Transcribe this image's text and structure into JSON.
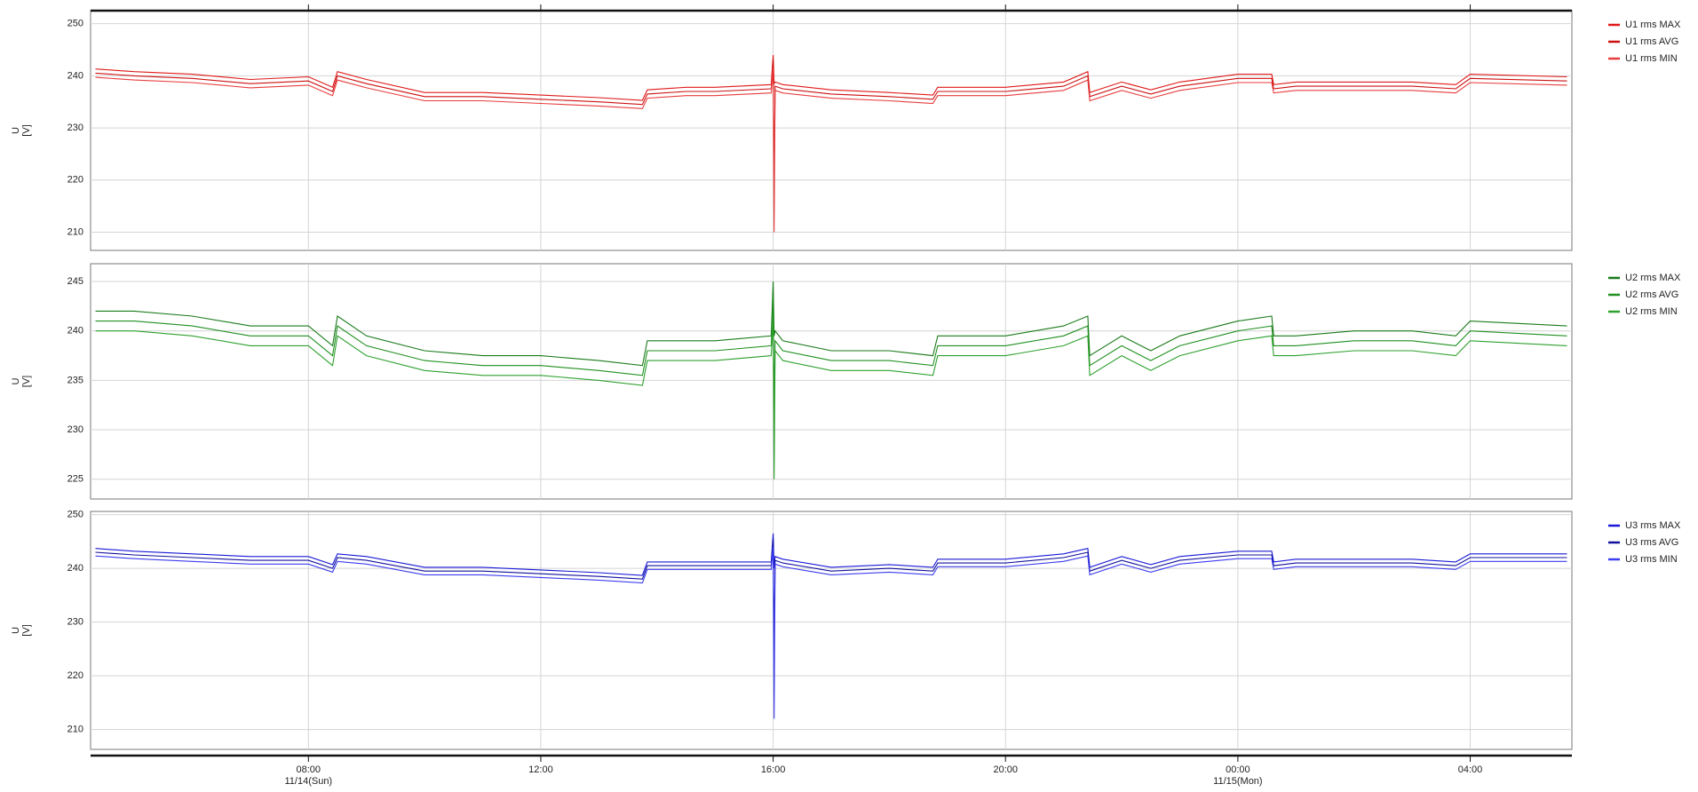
{
  "chart_data": [
    {
      "type": "line",
      "ylabel": "U",
      "yunit": "[V]",
      "ylim": [
        206.5,
        252.5
      ],
      "yticks": [
        210,
        220,
        230,
        240,
        250
      ],
      "grid": true,
      "series": [
        {
          "name": "U1 rms MAX",
          "color": "#e01818",
          "values": [
            241.3,
            240.8,
            240.3,
            239.3,
            239.8,
            237.8,
            240.8,
            239.3,
            236.8,
            236.8,
            236.3,
            235.8,
            235.3,
            237.3,
            237.8,
            237.8,
            238.3,
            244,
            238.5,
            238.8,
            238.3,
            237.3,
            236.8,
            236.3,
            237.8,
            237.8,
            238.8,
            240.8,
            236.8,
            238.8,
            237.3,
            238.8,
            240.3,
            240.3,
            238.3,
            238.8,
            238.8,
            238.8,
            238.3,
            240.3,
            239.8
          ]
        },
        {
          "name": "U1 rms AVG",
          "color": "#cc1010",
          "values": [
            240.5,
            240,
            239.5,
            238.5,
            239,
            237,
            240,
            238.5,
            236,
            236,
            235.5,
            235,
            234.5,
            236.5,
            237,
            237,
            237.5,
            243,
            220,
            238,
            237.5,
            236.5,
            236,
            235.5,
            237,
            237,
            238,
            240,
            236,
            238,
            236.5,
            238,
            239.5,
            239.5,
            237.5,
            238,
            238,
            238,
            237.5,
            239.5,
            239
          ]
        },
        {
          "name": "U1 rms MIN",
          "color": "#e83c3c",
          "values": [
            239.7,
            239.2,
            238.7,
            237.7,
            238.2,
            236.2,
            239.2,
            237.7,
            235.2,
            235.2,
            234.7,
            234.2,
            233.7,
            235.7,
            236.2,
            236.2,
            236.7,
            241.5,
            210,
            237.2,
            236.7,
            235.7,
            235.2,
            234.7,
            236.2,
            236.2,
            237.2,
            239.2,
            235.2,
            237.2,
            235.7,
            237.2,
            238.7,
            238.7,
            236.7,
            237.2,
            237.2,
            237.2,
            236.7,
            238.7,
            238.2
          ]
        }
      ]
    },
    {
      "type": "line",
      "ylabel": "U",
      "yunit": "[V]",
      "ylim": [
        223,
        246.8
      ],
      "yticks": [
        225,
        230,
        235,
        240,
        245
      ],
      "grid": true,
      "series": [
        {
          "name": "U2 rms MAX",
          "color": "#1a7a1a",
          "values": [
            242,
            242,
            241.5,
            240.5,
            240.5,
            238.5,
            241.5,
            239.5,
            238,
            237.5,
            237.5,
            237,
            236.5,
            239,
            239,
            239,
            239.5,
            245,
            239.5,
            240,
            239,
            238,
            238,
            237.5,
            239.5,
            239.5,
            240.5,
            241.5,
            237.5,
            239.5,
            238,
            239.5,
            241,
            241.5,
            239.5,
            239.5,
            240,
            240,
            239.5,
            241,
            240.5
          ]
        },
        {
          "name": "U2 rms AVG",
          "color": "#1f8f1f",
          "values": [
            241,
            241,
            240.5,
            239.5,
            239.5,
            237.5,
            240.5,
            238.5,
            237,
            236.5,
            236.5,
            236,
            235.5,
            238,
            238,
            238,
            238.5,
            243.5,
            232,
            239,
            238,
            237,
            237,
            236.5,
            238.5,
            238.5,
            239.5,
            240.5,
            236.5,
            238.5,
            237,
            238.5,
            240,
            240.5,
            238.5,
            238.5,
            239,
            239,
            238.5,
            240,
            239.5
          ]
        },
        {
          "name": "U2 rms MIN",
          "color": "#2ea02e",
          "values": [
            240,
            240,
            239.5,
            238.5,
            238.5,
            236.5,
            239.5,
            237.5,
            236,
            235.5,
            235.5,
            235,
            234.5,
            237,
            237,
            237,
            237.5,
            241,
            225,
            238,
            237,
            236,
            236,
            235.5,
            237.5,
            237.5,
            238.5,
            239.5,
            235.5,
            237.5,
            236,
            237.5,
            239,
            239.5,
            237.5,
            237.5,
            238,
            238,
            237.5,
            239,
            238.5
          ]
        }
      ]
    },
    {
      "type": "line",
      "ylabel": "U",
      "yunit": "[V]",
      "ylim": [
        206.3,
        250.6
      ],
      "yticks": [
        210,
        220,
        230,
        240,
        250
      ],
      "grid": true,
      "xlim": [
        "11/14 04:15",
        "11/15 05:45"
      ],
      "xticks": [
        {
          "value": "11/14 08:00",
          "label": "08:00"
        },
        {
          "value": "11/14 12:00",
          "label": "12:00"
        },
        {
          "value": "11/14 16:00",
          "label": "16:00"
        },
        {
          "value": "11/14 20:00",
          "label": "20:00"
        },
        {
          "value": "11/15 00:00",
          "label": "00:00"
        },
        {
          "value": "11/15 04:00",
          "label": "04:00"
        }
      ],
      "xdates": [
        {
          "value": "11/14 08:00",
          "label": "11/14(Sun)"
        },
        {
          "value": "11/15 00:00",
          "label": "11/15(Mon)"
        }
      ],
      "x": [
        "11/14 04:20",
        "11/14 05:00",
        "11/14 06:00",
        "11/14 07:00",
        "11/14 08:00",
        "11/14 08:25",
        "11/14 08:30",
        "11/14 09:00",
        "11/14 10:00",
        "11/14 11:00",
        "11/14 12:00",
        "11/14 13:00",
        "11/14 13:45",
        "11/14 13:50",
        "11/14 14:30",
        "11/14 15:00",
        "11/14 15:58",
        "11/14 16:00",
        "11/14 16:01",
        "11/14 16:02",
        "11/14 16:10",
        "11/14 17:00",
        "11/14 18:00",
        "11/14 18:45",
        "11/14 18:50",
        "11/14 20:00",
        "11/14 21:00",
        "11/14 21:25",
        "11/14 21:27",
        "11/14 22:00",
        "11/14 22:30",
        "11/14 23:00",
        "11/15 00:00",
        "11/15 00:35",
        "11/15 00:37",
        "11/15 01:00",
        "11/15 02:00",
        "11/15 03:00",
        "11/15 03:45",
        "11/15 04:00",
        "11/15 05:40"
      ],
      "series": [
        {
          "name": "U3 rms MAX",
          "color": "#1818d8",
          "values": [
            243.7,
            243.2,
            242.7,
            242.2,
            242.2,
            240.7,
            242.7,
            242.2,
            240.2,
            240.2,
            239.7,
            239.2,
            238.7,
            241.2,
            241.2,
            241.2,
            241.2,
            246.5,
            240,
            242.2,
            241.7,
            240.2,
            240.7,
            240.2,
            241.7,
            241.7,
            242.7,
            243.7,
            240.2,
            242.2,
            240.7,
            242.2,
            243.2,
            243.2,
            241.2,
            241.7,
            241.7,
            241.7,
            241.2,
            242.7,
            242.7
          ]
        },
        {
          "name": "U3 rms AVG",
          "color": "#10109c",
          "values": [
            243,
            242.5,
            242,
            241.5,
            241.5,
            240,
            242,
            241.5,
            239.5,
            239.5,
            239,
            238.5,
            238,
            240.5,
            240.5,
            240.5,
            240.5,
            245.5,
            225,
            241.5,
            241,
            239.5,
            240,
            239.5,
            241,
            241,
            242,
            243,
            239.5,
            241.5,
            240,
            241.5,
            242.5,
            242.5,
            240.5,
            241,
            241,
            241,
            240.5,
            242,
            242
          ]
        },
        {
          "name": "U3 rms MIN",
          "color": "#3c3cf0",
          "values": [
            242.3,
            241.8,
            241.3,
            240.8,
            240.8,
            239.3,
            241.3,
            240.8,
            238.8,
            238.8,
            238.3,
            237.8,
            237.3,
            239.8,
            239.8,
            239.8,
            239.8,
            244,
            212,
            240.8,
            240.3,
            238.8,
            239.3,
            238.8,
            240.3,
            240.3,
            241.3,
            242.3,
            238.8,
            240.8,
            239.3,
            240.8,
            241.8,
            241.8,
            239.8,
            240.3,
            240.3,
            240.3,
            239.8,
            241.3,
            241.3
          ]
        }
      ]
    }
  ]
}
